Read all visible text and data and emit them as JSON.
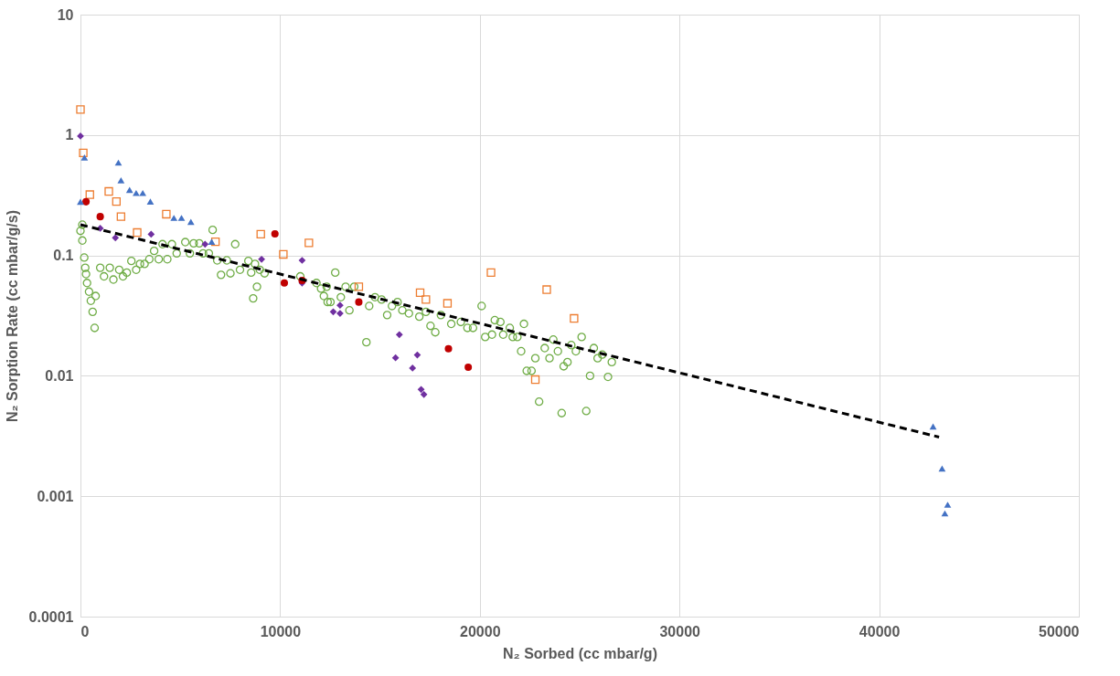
{
  "chart_data": {
    "type": "scatter",
    "xlabel": "N₂ Sorbed (cc mbar/g)",
    "ylabel": "N₂ Sorption Rate (cc mbar/g/s)",
    "xlim": [
      0,
      50000
    ],
    "xticks": [
      0,
      10000,
      20000,
      30000,
      40000,
      50000
    ],
    "ylim": [
      0.0001,
      10
    ],
    "yticks": [
      0.0001,
      0.001,
      0.01,
      0.1,
      1,
      10
    ],
    "log": "y",
    "grid": true,
    "series": [
      {
        "marker": "circle",
        "color": "#70ad47",
        "x": [
          95,
          0,
          95,
          190,
          240,
          280,
          330,
          430,
          520,
          760,
          610,
          710,
          990,
          1180,
          1470,
          1650,
          1940,
          2130,
          2320,
          2550,
          2790,
          2980,
          3210,
          3450,
          3690,
          3920,
          4110,
          4350,
          4580,
          4820,
          5250,
          5480,
          5670,
          5950,
          6140,
          6430,
          6620,
          6850,
          7040,
          7330,
          7510,
          7750,
          7990,
          8410,
          8550,
          8740,
          8840,
          8650,
          8980,
          9220,
          11010,
          11820,
          12050,
          12190,
          12380,
          12760,
          12330,
          12520,
          13040,
          13280,
          13710,
          13470,
          14320,
          14460,
          14750,
          15080,
          15360,
          15600,
          15880,
          16120,
          16450,
          16970,
          17300,
          17530,
          17770,
          18050,
          18570,
          19050,
          19380,
          19660,
          20090,
          20270,
          20610,
          20750,
          21030,
          21170,
          21500,
          21650,
          21880,
          22210,
          22070,
          22780,
          22350,
          22590,
          22970,
          23250,
          23490,
          23680,
          23910,
          24100,
          24200,
          24390,
          24580,
          24810,
          25100,
          25710,
          25900,
          26130,
          26610,
          25520,
          26420,
          25330
        ],
        "values": [
          0.18,
          0.16,
          0.133,
          0.096,
          0.079,
          0.07,
          0.059,
          0.05,
          0.042,
          0.046,
          0.034,
          0.025,
          0.079,
          0.067,
          0.079,
          0.063,
          0.076,
          0.067,
          0.072,
          0.09,
          0.076,
          0.085,
          0.085,
          0.093,
          0.109,
          0.093,
          0.124,
          0.093,
          0.124,
          0.104,
          0.129,
          0.104,
          0.126,
          0.126,
          0.104,
          0.104,
          0.163,
          0.091,
          0.069,
          0.091,
          0.071,
          0.124,
          0.076,
          0.09,
          0.072,
          0.085,
          0.055,
          0.044,
          0.076,
          0.071,
          0.067,
          0.059,
          0.053,
          0.046,
          0.041,
          0.072,
          0.055,
          0.041,
          0.045,
          0.055,
          0.055,
          0.035,
          0.019,
          0.038,
          0.045,
          0.043,
          0.032,
          0.038,
          0.041,
          0.035,
          0.033,
          0.031,
          0.034,
          0.026,
          0.023,
          0.032,
          0.027,
          0.028,
          0.025,
          0.025,
          0.038,
          0.021,
          0.022,
          0.029,
          0.028,
          0.022,
          0.025,
          0.021,
          0.021,
          0.027,
          0.016,
          0.014,
          0.011,
          0.011,
          0.0061,
          0.017,
          0.014,
          0.02,
          0.016,
          0.0049,
          0.012,
          0.013,
          0.018,
          0.016,
          0.021,
          0.017,
          0.014,
          0.015,
          0.013,
          0.01,
          0.0098,
          0.0051
        ]
      },
      {
        "marker": "square",
        "color": "#ed7d31",
        "x": [
          0,
          140,
          470,
          1420,
          1800,
          2030,
          2840,
          4300,
          6760,
          9030,
          10160,
          11440,
          13940,
          17010,
          17300,
          18380,
          20560,
          23350,
          22780,
          24720
        ],
        "values": [
          1.63,
          0.71,
          0.32,
          0.34,
          0.28,
          0.21,
          0.155,
          0.22,
          0.13,
          0.15,
          0.102,
          0.127,
          0.055,
          0.049,
          0.043,
          0.04,
          0.072,
          0.052,
          0.0093,
          0.03
        ]
      },
      {
        "marker": "diamond",
        "color": "#7030a0",
        "x": [
          0,
          990,
          1750,
          3540,
          6240,
          9070,
          11100,
          11100,
          13000,
          12660,
          13000,
          15970,
          15780,
          16870,
          16630,
          17060,
          17200
        ],
        "values": [
          0.98,
          0.168,
          0.14,
          0.15,
          0.124,
          0.093,
          0.091,
          0.059,
          0.0385,
          0.034,
          0.033,
          0.022,
          0.0141,
          0.0149,
          0.0116,
          0.0077,
          0.007
        ]
      },
      {
        "marker": "circle",
        "color": "#c00000",
        "x": [
          280,
          990,
          9740,
          10210,
          11100,
          13940,
          18430,
          19420
        ],
        "values": [
          0.279,
          0.21,
          0.151,
          0.059,
          0.062,
          0.041,
          0.0168,
          0.0118
        ]
      },
      {
        "marker": "triangle",
        "color": "#4472c4",
        "x": [
          0,
          200,
          1900,
          2030,
          2460,
          2790,
          3120,
          3500,
          4680,
          5060,
          5530,
          6570,
          42700,
          43150,
          43290,
          43430
        ],
        "values": [
          0.279,
          0.65,
          0.59,
          0.42,
          0.35,
          0.33,
          0.33,
          0.28,
          0.205,
          0.205,
          0.19,
          0.13,
          0.0038,
          0.0017,
          0.00072,
          0.00085
        ]
      },
      {
        "type": "line",
        "marker": "none",
        "line_style": "dashed",
        "color": "#000000",
        "x": [
          0,
          43000
        ],
        "values": [
          0.18,
          0.0031
        ]
      }
    ]
  }
}
